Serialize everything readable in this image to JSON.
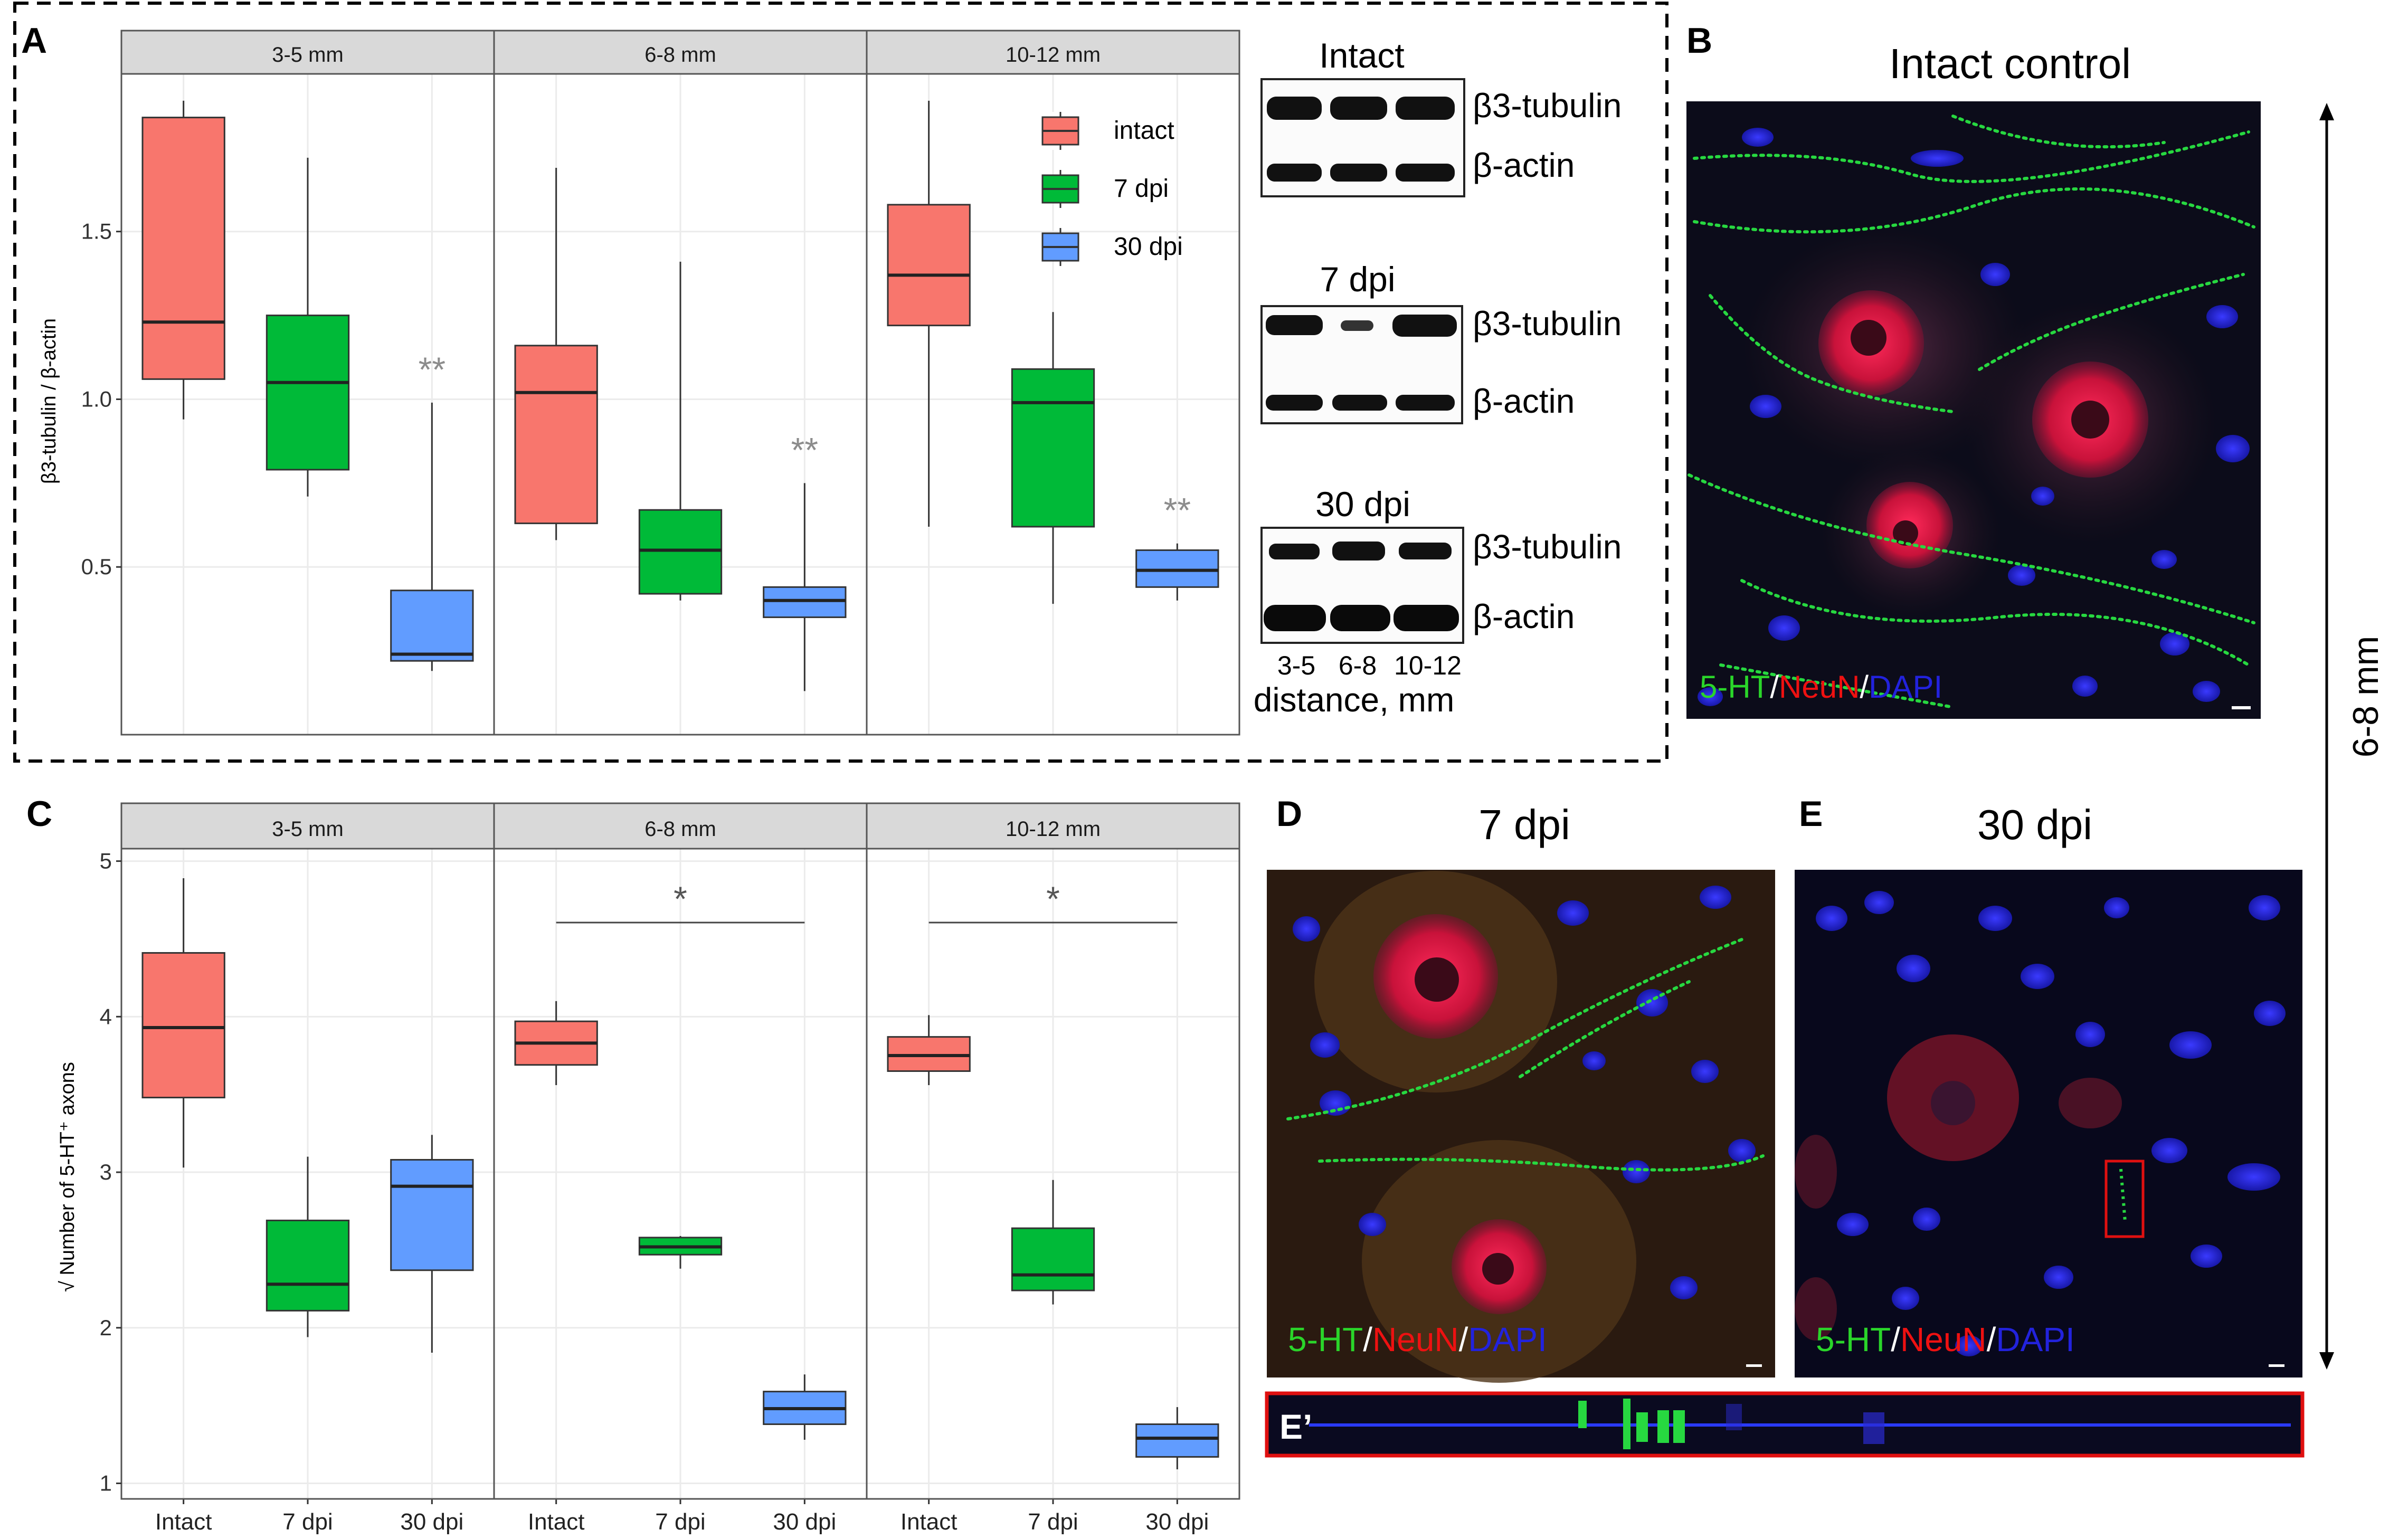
{
  "panel_letters": {
    "A": "A",
    "B": "B",
    "C": "C",
    "D": "D",
    "E": "E",
    "E_prime": "E’"
  },
  "colors": {
    "intact": "#F8766D",
    "dpi7": "#00BA38",
    "dpi30": "#619CFF",
    "strip": "#D9D9D9",
    "grid": "#EBEBEB",
    "sig": "#8C8C8C",
    "frame": "#555555"
  },
  "panel_a": {
    "ylabel": "β3-tubulin / β-actin",
    "strips": [
      "3-5 mm",
      "6-8 mm",
      "10-12 mm"
    ],
    "yticks": [
      "0.5",
      "1.0",
      "1.5"
    ],
    "sig_labels": [
      "**",
      "**",
      "**"
    ]
  },
  "legend": {
    "items": [
      "intact",
      "7 dpi",
      "30 dpi"
    ]
  },
  "blots": {
    "titles": [
      "Intact",
      "7 dpi",
      "30 dpi"
    ],
    "band_labels": [
      "β3-tubulin",
      "β-actin"
    ],
    "lane_labels": [
      "3-5",
      "6-8",
      "10-12"
    ],
    "axis_label": "distance, mm"
  },
  "panel_b": {
    "title": "Intact control",
    "stain_5ht": "5-HT",
    "stain_neun": "NeuN",
    "stain_dapi": "DAPI",
    "sep": "/"
  },
  "scale_label": "6-8 mm",
  "panel_c": {
    "ylabel": "√ Number of 5-HT⁺ axons",
    "strips": [
      "3-5 mm",
      "6-8 mm",
      "10-12 mm"
    ],
    "yticks": [
      "1",
      "2",
      "3",
      "4",
      "5"
    ],
    "xticks": [
      "Intact",
      "7 dpi",
      "30 dpi"
    ],
    "sig_labels": [
      "*",
      "*"
    ]
  },
  "panel_d": {
    "title": "7 dpi",
    "stain_5ht": "5-HT",
    "stain_neun": "NeuN",
    "stain_dapi": "DAPI",
    "sep": "/"
  },
  "panel_e": {
    "title": "30 dpi",
    "stain_5ht": "5-HT",
    "stain_neun": "NeuN",
    "stain_dapi": "DAPI",
    "sep": "/"
  },
  "chart_data": [
    {
      "type": "box",
      "panel": "A",
      "ylabel": "β3-tubulin / β-actin",
      "ylim": [
        0.0,
        1.97
      ],
      "facets": [
        "3-5 mm",
        "6-8 mm",
        "10-12 mm"
      ],
      "groups": [
        "intact",
        "7 dpi",
        "30 dpi"
      ],
      "boxes": [
        [
          {
            "min": 0.94,
            "q1": 1.06,
            "median": 1.23,
            "q3": 1.84,
            "max": 1.89
          },
          {
            "min": 0.71,
            "q1": 0.79,
            "median": 1.05,
            "q3": 1.25,
            "max": 1.72
          },
          {
            "min": 0.19,
            "q1": 0.22,
            "median": 0.24,
            "q3": 0.43,
            "max": 0.99
          }
        ],
        [
          {
            "min": 0.58,
            "q1": 0.63,
            "median": 1.02,
            "q3": 1.16,
            "max": 1.69
          },
          {
            "min": 0.4,
            "q1": 0.42,
            "median": 0.55,
            "q3": 0.67,
            "max": 1.41
          },
          {
            "min": 0.13,
            "q1": 0.35,
            "median": 0.4,
            "q3": 0.44,
            "max": 0.75
          }
        ],
        [
          {
            "min": 0.62,
            "q1": 1.22,
            "median": 1.37,
            "q3": 1.58,
            "max": 1.89
          },
          {
            "min": 0.39,
            "q1": 0.62,
            "median": 0.99,
            "q3": 1.09,
            "max": 1.26
          },
          {
            "min": 0.4,
            "q1": 0.44,
            "median": 0.49,
            "q3": 0.55,
            "max": 0.57
          }
        ]
      ],
      "significance": [
        "**",
        "**",
        "**"
      ]
    },
    {
      "type": "box",
      "panel": "C",
      "ylabel": "√ Number of 5-HT⁺ axons",
      "ylim": [
        0.9,
        5.08
      ],
      "facets": [
        "3-5 mm",
        "6-8 mm",
        "10-12 mm"
      ],
      "groups": [
        "Intact",
        "7 dpi",
        "30 dpi"
      ],
      "boxes": [
        [
          {
            "min": 3.03,
            "q1": 3.48,
            "median": 3.93,
            "q3": 4.41,
            "max": 4.89
          },
          {
            "min": 1.94,
            "q1": 2.11,
            "median": 2.28,
            "q3": 2.69,
            "max": 3.1
          },
          {
            "min": 1.84,
            "q1": 2.37,
            "median": 2.91,
            "q3": 3.08,
            "max": 3.24
          }
        ],
        [
          {
            "min": 3.56,
            "q1": 3.69,
            "median": 3.83,
            "q3": 3.97,
            "max": 4.1
          },
          {
            "min": 2.38,
            "q1": 2.47,
            "median": 2.52,
            "q3": 2.58,
            "max": 2.59
          },
          {
            "min": 1.28,
            "q1": 1.38,
            "median": 1.48,
            "q3": 1.59,
            "max": 1.7
          }
        ],
        [
          {
            "min": 3.56,
            "q1": 3.65,
            "median": 3.75,
            "q3": 3.87,
            "max": 4.01
          },
          {
            "min": 2.15,
            "q1": 2.24,
            "median": 2.34,
            "q3": 2.64,
            "max": 2.95
          },
          {
            "min": 1.09,
            "q1": 1.17,
            "median": 1.29,
            "q3": 1.38,
            "max": 1.49
          }
        ]
      ],
      "significance": [
        "",
        "*",
        "*"
      ]
    }
  ]
}
